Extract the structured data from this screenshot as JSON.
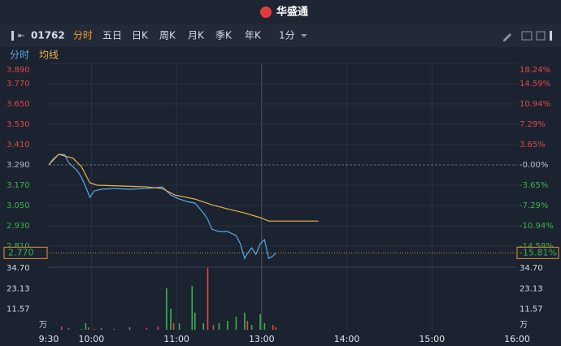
{
  "header": {
    "title": "华盛通"
  },
  "toolbar": {
    "code": "01762",
    "tabs": [
      "分时",
      "五日",
      "日K",
      "周K",
      "月K",
      "季K",
      "年K"
    ],
    "interval": "1分"
  },
  "legend_tabs": [
    "分时",
    "均线"
  ],
  "chart_data": [
    {
      "type": "line",
      "xlim": [
        0,
        330
      ],
      "xticks": [
        {
          "value": 0,
          "label": "9:30"
        },
        {
          "value": 30,
          "label": "10:00"
        },
        {
          "value": 90,
          "label": "11:00"
        },
        {
          "value": 150,
          "label": "13:00"
        },
        {
          "value": 210,
          "label": "14:00"
        },
        {
          "value": 270,
          "label": "15:00"
        },
        {
          "value": 330,
          "label": "16:00"
        }
      ],
      "ylim": [
        2.69,
        3.89
      ],
      "yticks": [
        {
          "value": 3.89,
          "label": "3.890"
        },
        {
          "value": 3.77,
          "label": "3.770"
        },
        {
          "value": 3.65,
          "label": "3.650"
        },
        {
          "value": 3.53,
          "label": "3.530"
        },
        {
          "value": 3.41,
          "label": "3.410"
        },
        {
          "value": 3.29,
          "label": "3.290"
        },
        {
          "value": 3.17,
          "label": "3.170"
        },
        {
          "value": 3.05,
          "label": "3.050"
        },
        {
          "value": 2.93,
          "label": "2.930"
        },
        {
          "value": 2.81,
          "label": "2.810"
        }
      ],
      "y2lim": [
        -18.24,
        18.24
      ],
      "y2ticks": [
        {
          "value": 18.24,
          "label": "18.24%"
        },
        {
          "value": 14.59,
          "label": "14.59%"
        },
        {
          "value": 10.94,
          "label": "10.94%"
        },
        {
          "value": 7.29,
          "label": "7.29%"
        },
        {
          "value": 3.65,
          "label": "3.65%"
        },
        {
          "value": 0,
          "label": "-0.00%"
        },
        {
          "value": -3.65,
          "label": "-3.65%"
        },
        {
          "value": -7.29,
          "label": "-7.29%"
        },
        {
          "value": -10.94,
          "label": "-10.94%"
        },
        {
          "value": -14.59,
          "label": "-14.59%"
        }
      ],
      "prev_close": 3.29,
      "last_price": {
        "value": 2.77,
        "label": "2.770"
      },
      "last_change": {
        "value": -15.81,
        "label": "-15.81%"
      },
      "series": [
        {
          "name": "分时",
          "color": "#5aa9e6",
          "x": [
            0,
            3,
            7,
            11,
            14,
            17,
            20,
            23,
            26,
            29,
            32,
            37,
            46,
            57,
            69,
            80,
            83,
            86,
            92,
            97,
            103,
            109,
            112,
            115,
            120,
            126,
            132,
            135,
            138,
            140,
            143,
            146,
            149,
            152,
            155,
            158,
            160
          ],
          "values": [
            3.29,
            3.324,
            3.352,
            3.352,
            3.304,
            3.28,
            3.256,
            3.218,
            3.16,
            3.098,
            3.136,
            3.146,
            3.15,
            3.146,
            3.15,
            3.16,
            3.136,
            3.112,
            3.088,
            3.074,
            3.064,
            3.006,
            2.968,
            2.91,
            2.896,
            2.896,
            2.872,
            2.824,
            2.737,
            2.766,
            2.8,
            2.761,
            2.824,
            2.848,
            2.737,
            2.752,
            2.77
          ]
        },
        {
          "name": "均线",
          "color": "#e8b64a",
          "x": [
            0,
            7,
            17,
            23,
            29,
            34,
            69,
            80,
            89,
            103,
            115,
            126,
            138,
            149,
            155,
            190
          ],
          "values": [
            3.29,
            3.352,
            3.33,
            3.28,
            3.184,
            3.17,
            3.16,
            3.15,
            3.112,
            3.088,
            3.054,
            3.03,
            3.006,
            2.978,
            2.958,
            2.958
          ]
        }
      ]
    },
    {
      "type": "bar",
      "xlim": [
        0,
        330
      ],
      "ylim": [
        0,
        34.7
      ],
      "yticks": [
        {
          "value": 11.57,
          "label": "11.57"
        },
        {
          "value": 23.13,
          "label": "23.13"
        },
        {
          "value": 34.7,
          "label": "34.70"
        }
      ],
      "unit": "万",
      "x": [
        9,
        14,
        23,
        26,
        28,
        32,
        37,
        46,
        57,
        69,
        77,
        83,
        86,
        88,
        92,
        101,
        103,
        109,
        112,
        116,
        120,
        126,
        132,
        138,
        140,
        143,
        149,
        152,
        158,
        160
      ],
      "values": [
        1.8,
        0.9,
        0.5,
        3.7,
        1.4,
        0.5,
        0.9,
        0.5,
        1.4,
        0.9,
        1.8,
        23.3,
        11.9,
        3.7,
        3.7,
        24.7,
        9.6,
        3.7,
        34.7,
        2.7,
        3.7,
        5.0,
        7.3,
        9.6,
        5.0,
        2.7,
        8.7,
        3.7,
        2.7,
        1.4
      ],
      "colors": [
        "#e04848",
        "#e04848",
        "#3cb44b",
        "#3cb44b",
        "#e04848",
        "#e04848",
        "#e04848",
        "#e04848",
        "#3cb44b",
        "#e04848",
        "#e04848",
        "#3cb44b",
        "#3cb44b",
        "#e04848",
        "#3cb44b",
        "#3cb44b",
        "#3cb44b",
        "#3cb44b",
        "#e04848",
        "#e04848",
        "#3cb44b",
        "#3cb44b",
        "#3cb44b",
        "#3cb44b",
        "#e04848",
        "#3cb44b",
        "#3cb44b",
        "#3cb44b",
        "#e04848",
        "#e04848"
      ]
    }
  ]
}
